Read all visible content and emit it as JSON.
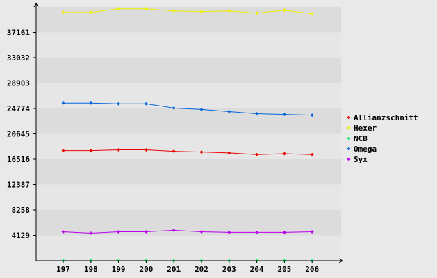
{
  "chart_data": {
    "type": "line",
    "x": [
      "197",
      "198",
      "199",
      "200",
      "201",
      "202",
      "203",
      "204",
      "205",
      "206"
    ],
    "ylim": [
      0,
      41290
    ],
    "yticks": [
      "4129",
      "8258",
      "12387",
      "16516",
      "20645",
      "24774",
      "28903",
      "33032",
      "37161"
    ],
    "legend_position": "right",
    "grid": "alternating horizontal bands",
    "series": [
      {
        "name": "Allianzschnitt",
        "color": "#ee0000",
        "values": [
          17920,
          17920,
          18040,
          18040,
          17810,
          17690,
          17540,
          17280,
          17420,
          17280
        ]
      },
      {
        "name": "Hexer",
        "color": "#eeee00",
        "values": [
          40410,
          40410,
          40990,
          40990,
          40650,
          40530,
          40650,
          40300,
          40760,
          40190
        ]
      },
      {
        "name": "NCB",
        "color": "#00ee66",
        "values": [
          0,
          0,
          0,
          0,
          0,
          0,
          0,
          0,
          0,
          0
        ]
      },
      {
        "name": "Omega",
        "color": "#0066dd",
        "values": [
          25650,
          25650,
          25540,
          25540,
          24840,
          24610,
          24260,
          23920,
          23800,
          23690
        ]
      },
      {
        "name": "Syx",
        "color": "#bb00ee",
        "values": [
          4700,
          4470,
          4700,
          4700,
          4930,
          4700,
          4590,
          4590,
          4590,
          4700
        ]
      }
    ]
  }
}
